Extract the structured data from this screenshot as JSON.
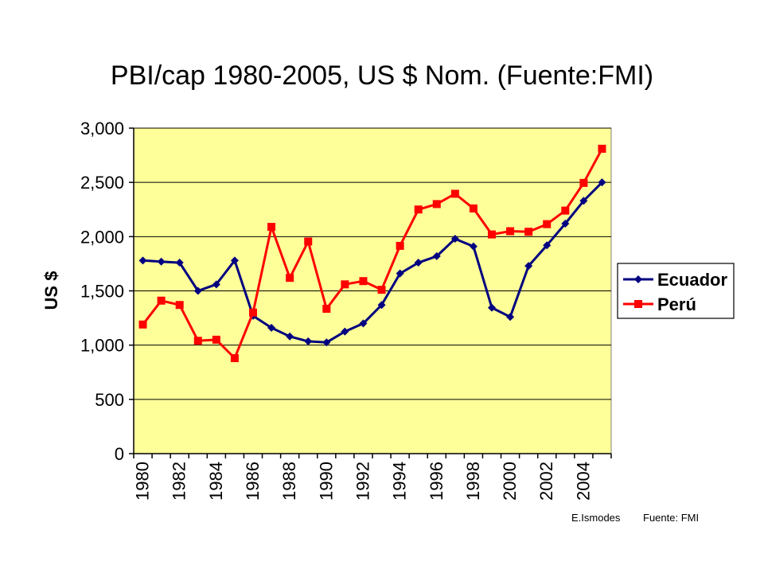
{
  "chart_data": {
    "type": "line",
    "title": "PBI/cap 1980-2005, US $ Nom. (Fuente:FMI)",
    "ylabel": "US $",
    "xlabel": "",
    "ylim": [
      0,
      3000
    ],
    "yticks": [
      0,
      500,
      1000,
      1500,
      2000,
      2500,
      3000
    ],
    "ytick_labels": [
      "0",
      "500",
      "1,000",
      "1,500",
      "2,000",
      "2,500",
      "3,000"
    ],
    "x": [
      1980,
      1981,
      1982,
      1983,
      1984,
      1985,
      1986,
      1987,
      1988,
      1989,
      1990,
      1991,
      1992,
      1993,
      1994,
      1995,
      1996,
      1997,
      1998,
      1999,
      2000,
      2001,
      2002,
      2003,
      2004,
      2005
    ],
    "xtick_labels": [
      "1980",
      "1982",
      "1984",
      "1986",
      "1988",
      "1990",
      "1992",
      "1994",
      "1996",
      "1998",
      "2000",
      "2002",
      "2004"
    ],
    "grid": true,
    "legend_position": "right",
    "plot_background": "#FFFF99",
    "series": [
      {
        "name": "Ecuador",
        "color": "#000080",
        "marker": "diamond",
        "values": [
          1780,
          1770,
          1760,
          1500,
          1560,
          1780,
          1270,
          1160,
          1080,
          1035,
          1025,
          1125,
          1200,
          1370,
          1660,
          1760,
          1820,
          1980,
          1910,
          1345,
          1260,
          1730,
          1920,
          2120,
          2330,
          2500
        ]
      },
      {
        "name": "Perú",
        "color": "#FF0000",
        "marker": "square",
        "values": [
          1190,
          1410,
          1370,
          1040,
          1050,
          880,
          1300,
          2090,
          1620,
          1955,
          1335,
          1560,
          1590,
          1510,
          1915,
          2250,
          2300,
          2395,
          2260,
          2020,
          2050,
          2045,
          2115,
          2240,
          2495,
          2810
        ]
      }
    ]
  },
  "footer": {
    "author": "E.Ismodes",
    "source": "Fuente: FMI"
  }
}
